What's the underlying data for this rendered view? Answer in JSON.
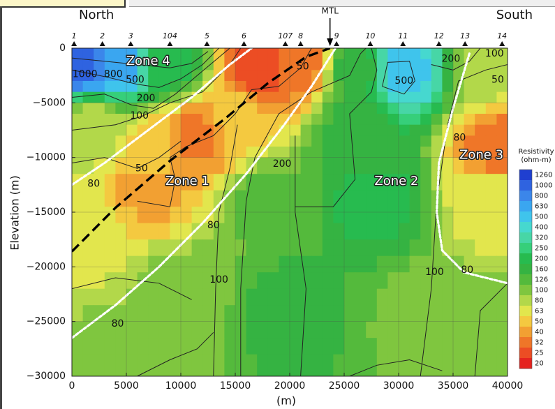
{
  "chart_data": {
    "type": "heatmap",
    "title": "",
    "xlabel": "(m)",
    "ylabel": "Elevation (m)",
    "xlim": [
      0,
      40000
    ],
    "ylim": [
      -30000,
      500
    ],
    "x_ticks": [
      "0",
      "5000",
      "10000",
      "15000",
      "20000",
      "25000",
      "30000",
      "35000",
      "40000"
    ],
    "y_ticks": [
      "0",
      "-5000",
      "-10000",
      "-15000",
      "-20000",
      "-25000",
      "-30000"
    ],
    "grid": true,
    "direction_labels": {
      "left": "North",
      "right": "South"
    },
    "fault": {
      "label": "MTL",
      "x": 23700
    },
    "stations": [
      {
        "label": "1",
        "x": 200
      },
      {
        "label": "2",
        "x": 2800
      },
      {
        "label": "3",
        "x": 5400
      },
      {
        "label": "104",
        "x": 9000
      },
      {
        "label": "5",
        "x": 12400
      },
      {
        "label": "6",
        "x": 15800
      },
      {
        "label": "107",
        "x": 19600
      },
      {
        "label": "8",
        "x": 21000
      },
      {
        "label": "9",
        "x": 24300
      },
      {
        "label": "10",
        "x": 27400
      },
      {
        "label": "11",
        "x": 30400
      },
      {
        "label": "12",
        "x": 33700
      },
      {
        "label": "13",
        "x": 36100
      },
      {
        "label": "14",
        "x": 39500
      }
    ],
    "zones": [
      {
        "label": "Zone 4",
        "x": 7000,
        "y": -1200
      },
      {
        "label": "Zone 1",
        "x": 10600,
        "y": -12200
      },
      {
        "label": "Zone 2",
        "x": 29800,
        "y": -12200
      },
      {
        "label": "Zone 3",
        "x": 37600,
        "y": -9800
      }
    ],
    "contour_labels": [
      {
        "text": "1000",
        "x": 1200,
        "y": -2400
      },
      {
        "text": "800",
        "x": 3800,
        "y": -2400
      },
      {
        "text": "500",
        "x": 5800,
        "y": -2900
      },
      {
        "text": "200",
        "x": 6800,
        "y": -4600
      },
      {
        "text": "100",
        "x": 6200,
        "y": -6200
      },
      {
        "text": "80",
        "x": 2000,
        "y": -12400
      },
      {
        "text": "50",
        "x": 6400,
        "y": -11000
      },
      {
        "text": "50",
        "x": 21200,
        "y": -1700
      },
      {
        "text": "200",
        "x": 19300,
        "y": -10600
      },
      {
        "text": "500",
        "x": 30500,
        "y": -3000
      },
      {
        "text": "200",
        "x": 34800,
        "y": -1000
      },
      {
        "text": "100",
        "x": 38800,
        "y": -500
      },
      {
        "text": "50",
        "x": 39100,
        "y": -2900
      },
      {
        "text": "80",
        "x": 35600,
        "y": -8200
      },
      {
        "text": "80",
        "x": 13000,
        "y": -16200
      },
      {
        "text": "100",
        "x": 13500,
        "y": -21200
      },
      {
        "text": "80",
        "x": 4200,
        "y": -25200
      },
      {
        "text": "100",
        "x": 33300,
        "y": -20500
      },
      {
        "text": "80",
        "x": 36300,
        "y": -20300
      }
    ],
    "colorbar": {
      "title": "Resistivity",
      "units": "(ohm-m)",
      "ticks": [
        "1260",
        "1000",
        "800",
        "630",
        "500",
        "400",
        "320",
        "250",
        "200",
        "160",
        "126",
        "100",
        "80",
        "63",
        "50",
        "40",
        "32",
        "25",
        "20"
      ],
      "colors": [
        "#1f3fd0",
        "#2f63e0",
        "#3b86ea",
        "#3aa6f0",
        "#3fc4ec",
        "#46d8cf",
        "#47d6a6",
        "#36cf7a",
        "#27bb4f",
        "#35b342",
        "#54ba3c",
        "#7fc63f",
        "#b2d84a",
        "#e2e64d",
        "#f4c940",
        "#f2a032",
        "#ef7628",
        "#ec4d24",
        "#e5231f"
      ]
    },
    "model_points": [
      {
        "x": 1000,
        "y": -1500,
        "rho": 1000
      },
      {
        "x": 4500,
        "y": -1500,
        "rho": 630
      },
      {
        "x": 8500,
        "y": -1500,
        "rho": 200
      },
      {
        "x": 17500,
        "y": -2000,
        "rho": 25
      },
      {
        "x": 21000,
        "y": -1500,
        "rho": 32
      },
      {
        "x": 26000,
        "y": -2000,
        "rho": 160
      },
      {
        "x": 30500,
        "y": -2000,
        "rho": 500
      },
      {
        "x": 38000,
        "y": -2000,
        "rho": 80
      },
      {
        "x": 2000,
        "y": -7000,
        "rho": 80
      },
      {
        "x": 7500,
        "y": -8500,
        "rho": 50
      },
      {
        "x": 11500,
        "y": -8000,
        "rho": 32
      },
      {
        "x": 15000,
        "y": -6500,
        "rho": 50
      },
      {
        "x": 26000,
        "y": -8000,
        "rho": 160
      },
      {
        "x": 39000,
        "y": -9000,
        "rho": 32
      },
      {
        "x": 7000,
        "y": -13000,
        "rho": 40
      },
      {
        "x": 18000,
        "y": -14000,
        "rho": 126
      },
      {
        "x": 28000,
        "y": -14000,
        "rho": 200
      },
      {
        "x": 38500,
        "y": -14000,
        "rho": 63
      },
      {
        "x": 2000,
        "y": -17000,
        "rho": 63
      },
      {
        "x": 10000,
        "y": -22000,
        "rho": 100
      },
      {
        "x": 20000,
        "y": -24000,
        "rho": 160
      },
      {
        "x": 33000,
        "y": -24000,
        "rho": 100
      },
      {
        "x": 5000,
        "y": -28000,
        "rho": 100
      },
      {
        "x": 38000,
        "y": -27000,
        "rho": 100
      }
    ]
  }
}
